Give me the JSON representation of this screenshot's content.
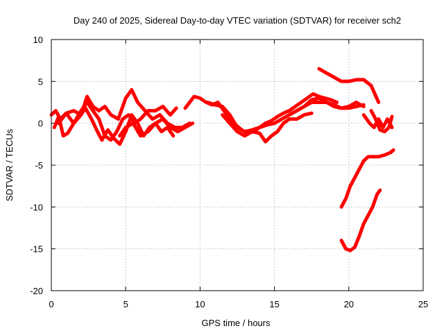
{
  "chart_data": {
    "type": "line",
    "title": "Day 240 of 2025, Sidereal Day-to-day VTEC variation (SDTVAR) for receiver sch2",
    "xlabel": "GPS time / hours",
    "ylabel": "SDTVAR / TECUs",
    "xlim": [
      0,
      25
    ],
    "ylim": [
      -20,
      10
    ],
    "xticks": [
      0,
      5,
      10,
      15,
      20,
      25
    ],
    "yticks": [
      -20,
      -15,
      -10,
      -5,
      0,
      5,
      10
    ],
    "xtick_labels": [
      "0",
      "5",
      "10",
      "15",
      "20",
      "25"
    ],
    "ytick_labels": [
      "-20",
      "-15",
      "-10",
      "-5",
      "0",
      "5",
      "10"
    ],
    "grid": true,
    "color": "#ff0000",
    "series": [
      {
        "name": "s1",
        "x": [
          0.0,
          0.3,
          0.6,
          1.0,
          1.5,
          2.0,
          2.4,
          2.8,
          3.2,
          3.6,
          4.0,
          4.4,
          4.8,
          5.2,
          5.6,
          6.0,
          6.5,
          7.0,
          7.5,
          8.0,
          8.4
        ],
        "y": [
          1.0,
          1.5,
          0.5,
          1.2,
          0.0,
          1.5,
          2.5,
          1.5,
          0.5,
          -1.5,
          -2.0,
          -1.0,
          0.5,
          1.0,
          0.0,
          0.5,
          1.5,
          1.5,
          2.0,
          1.0,
          1.8
        ]
      },
      {
        "name": "s2",
        "x": [
          0.2,
          0.5,
          0.8,
          1.1,
          1.5,
          1.9,
          2.3,
          2.7,
          3.1,
          3.4,
          3.8,
          4.2,
          4.6,
          5.0,
          5.4,
          5.8,
          6.2,
          6.6,
          7.0,
          7.4,
          7.8,
          8.2
        ],
        "y": [
          -0.5,
          0.8,
          -1.5,
          -1.2,
          0.0,
          0.8,
          1.8,
          0.5,
          -1.0,
          -2.0,
          -0.8,
          -1.8,
          -2.5,
          -1.0,
          1.0,
          0.0,
          -1.5,
          -0.5,
          0.0,
          -1.0,
          -0.5,
          -1.5
        ]
      },
      {
        "name": "s3",
        "x": [
          0.5,
          1.0,
          1.5,
          2.0,
          2.4,
          2.8,
          3.2,
          3.6,
          4.0,
          4.5,
          5.0,
          5.4,
          5.8,
          6.3,
          6.8,
          7.3,
          7.8,
          8.3,
          8.8,
          9.3
        ],
        "y": [
          0.0,
          1.2,
          1.5,
          1.0,
          3.2,
          2.0,
          1.5,
          2.0,
          1.0,
          0.5,
          3.0,
          4.0,
          2.5,
          1.5,
          0.5,
          1.0,
          0.0,
          -0.5,
          -0.5,
          0.0
        ]
      },
      {
        "name": "s4",
        "x": [
          4.6,
          5.0,
          5.5,
          6.0,
          6.5,
          7.0,
          7.5,
          8.0,
          8.5,
          9.0,
          9.5
        ],
        "y": [
          -1.5,
          -0.5,
          0.0,
          -1.5,
          -1.0,
          0.0,
          0.5,
          -0.5,
          -1.0,
          -0.5,
          0.0
        ]
      },
      {
        "name": "s5",
        "x": [
          9.0,
          9.3,
          9.6,
          10.0,
          10.4,
          10.8,
          11.2,
          11.6,
          12.0,
          12.4,
          12.8,
          13.2,
          13.6,
          14.0,
          14.4,
          14.8,
          15.2,
          15.6,
          16.0,
          16.4,
          16.8,
          17.2,
          17.6,
          18.0,
          18.4,
          18.8,
          19.2
        ],
        "y": [
          1.8,
          2.5,
          3.2,
          3.0,
          2.5,
          2.2,
          2.5,
          1.5,
          0.5,
          -0.2,
          -0.8,
          -1.2,
          -1.0,
          -0.5,
          0.0,
          0.3,
          0.8,
          1.2,
          1.5,
          2.0,
          2.5,
          3.0,
          3.5,
          3.2,
          3.0,
          2.8,
          2.5
        ]
      },
      {
        "name": "s6",
        "x": [
          10.5,
          11.0,
          11.5,
          12.0,
          12.5,
          13.0,
          13.5,
          14.0,
          14.5,
          15.0,
          15.5,
          16.0,
          16.5,
          17.0,
          17.5,
          18.0,
          18.5,
          19.0,
          19.5,
          20.0,
          20.5,
          21.0
        ],
        "y": [
          2.5,
          2.2,
          2.0,
          1.0,
          -0.5,
          -1.0,
          -0.8,
          -0.5,
          -0.2,
          0.0,
          0.5,
          1.0,
          1.5,
          2.0,
          2.8,
          3.0,
          2.5,
          2.0,
          1.8,
          2.0,
          2.5,
          2.0
        ]
      },
      {
        "name": "s7",
        "x": [
          11.5,
          12.0,
          12.5,
          13.0,
          13.5,
          14.0,
          14.4,
          14.8,
          15.2,
          15.6,
          16.0,
          16.5,
          17.0,
          17.5
        ],
        "y": [
          1.0,
          0.0,
          -1.0,
          -1.5,
          -1.0,
          -1.2,
          -2.2,
          -1.5,
          -1.0,
          0.0,
          0.5,
          0.5,
          1.0,
          1.2
        ]
      },
      {
        "name": "s8",
        "x": [
          16.0,
          16.5,
          17.0,
          17.5,
          18.0,
          18.5,
          19.0,
          19.5,
          20.0,
          20.5,
          21.0
        ],
        "y": [
          1.0,
          1.5,
          2.0,
          2.5,
          2.5,
          2.5,
          2.2,
          1.8,
          1.8,
          2.0,
          2.2
        ]
      },
      {
        "name": "s9",
        "x": [
          18.0,
          18.5,
          19.0,
          19.5,
          20.0,
          20.5,
          21.0,
          21.5,
          22.0
        ],
        "y": [
          6.5,
          6.0,
          5.5,
          5.0,
          5.0,
          5.2,
          5.2,
          4.5,
          2.5
        ]
      },
      {
        "name": "s10",
        "x": [
          21.0,
          21.4,
          21.7,
          22.0,
          22.3,
          22.6,
          22.9
        ],
        "y": [
          1.0,
          0.0,
          -0.5,
          0.5,
          -0.5,
          0.5,
          -0.5
        ]
      },
      {
        "name": "s11",
        "x": [
          21.5,
          21.8,
          22.1,
          22.4,
          22.7,
          22.9
        ],
        "y": [
          1.5,
          0.5,
          -0.8,
          -1.0,
          -0.5,
          0.8
        ]
      },
      {
        "name": "s12",
        "x": [
          19.5,
          19.8,
          20.1,
          20.4,
          20.7,
          21.0,
          21.3,
          21.6,
          22.0,
          22.4,
          22.8,
          23.0
        ],
        "y": [
          -10.0,
          -9.0,
          -7.5,
          -6.5,
          -5.5,
          -4.5,
          -4.0,
          -4.0,
          -4.0,
          -3.8,
          -3.5,
          -3.2
        ]
      },
      {
        "name": "s13",
        "x": [
          19.5,
          19.8,
          20.1,
          20.4,
          20.7,
          21.0,
          21.3,
          21.6,
          21.9,
          22.1
        ],
        "y": [
          -14.0,
          -15.0,
          -15.2,
          -14.8,
          -13.5,
          -12.0,
          -11.0,
          -10.0,
          -8.5,
          -8.0
        ]
      }
    ]
  }
}
